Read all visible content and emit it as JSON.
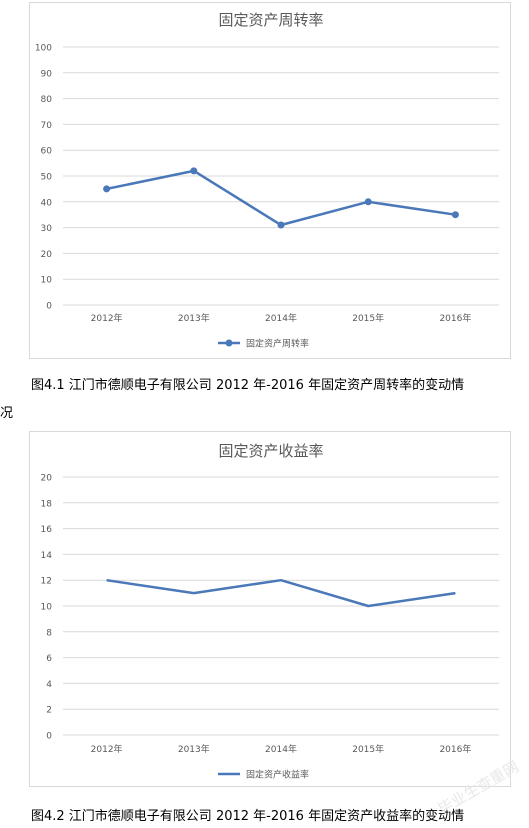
{
  "chart_data": [
    {
      "type": "line",
      "title": "固定资产周转率",
      "categories": [
        "2012年",
        "2013年",
        "2014年",
        "2015年",
        "2016年"
      ],
      "series": [
        {
          "name": "固定资产周转率",
          "values": [
            45,
            52,
            31,
            40,
            35
          ],
          "markers": true
        }
      ],
      "ylim": [
        0,
        100
      ],
      "yticks": [
        0,
        10,
        20,
        30,
        40,
        50,
        60,
        70,
        80,
        90,
        100
      ],
      "grid": true,
      "legend": "bottom",
      "color": "#4a78b8"
    },
    {
      "type": "line",
      "title": "固定资产收益率",
      "categories": [
        "2012年",
        "2013年",
        "2014年",
        "2015年",
        "2016年"
      ],
      "series": [
        {
          "name": "固定资产收益率",
          "values": [
            12,
            11,
            12,
            10,
            11
          ],
          "markers": false
        }
      ],
      "ylim": [
        0,
        20
      ],
      "yticks": [
        0,
        2,
        4,
        6,
        8,
        10,
        12,
        14,
        16,
        18,
        20
      ],
      "grid": true,
      "legend": "bottom",
      "color": "#4a78b8"
    }
  ],
  "captions": {
    "fig1_line1": "图4.1 江门市德顺电子有限公司 2012 年-2016 年固定资产周转率的变动情",
    "fig1_line2": "况",
    "fig2": "图4.2 江门市德顺电子有限公司 2012 年-2016 年固定资产收益率的变动情"
  },
  "watermark": "毕业生查重网"
}
